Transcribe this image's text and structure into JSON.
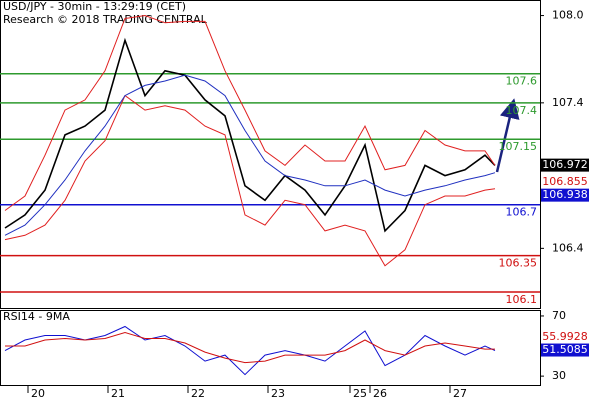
{
  "chart_data": [
    {
      "type": "line",
      "title": "USD/JPY - 30min - 13:29:19 (CET)",
      "subtitle": "Research © 2018 TRADING CENTRAL",
      "x": [
        5,
        25,
        45,
        65,
        85,
        105,
        125,
        145,
        165,
        185,
        205,
        225,
        245,
        265,
        285,
        305,
        325,
        345,
        365,
        385,
        405,
        425,
        445,
        465,
        485,
        495
      ],
      "xlim": [
        0,
        540
      ],
      "xticks": [
        {
          "value": 28,
          "label": "20"
        },
        {
          "value": 108,
          "label": "21"
        },
        {
          "value": 188,
          "label": "22"
        },
        {
          "value": 268,
          "label": "23"
        },
        {
          "value": 350,
          "label": "25"
        },
        {
          "value": 370,
          "label": "26"
        },
        {
          "value": 450,
          "label": "27"
        }
      ],
      "ylim": [
        105.99,
        108.1
      ],
      "yticks": [
        {
          "value": 108,
          "label": "108.0"
        },
        107.4,
        106.4
      ],
      "series": [
        {
          "color": "#000000",
          "values": [
            106.54,
            106.63,
            106.8,
            107.18,
            107.24,
            107.35,
            107.83,
            107.45,
            107.62,
            107.59,
            107.42,
            107.31,
            106.83,
            106.73,
            106.9,
            106.8,
            106.63,
            106.83,
            107.11,
            106.52,
            106.66,
            106.97,
            106.9,
            106.94,
            107.04,
            106.97
          ]
        },
        {
          "color": "#e02020",
          "values": [
            106.66,
            106.76,
            107.04,
            107.35,
            107.42,
            107.62,
            107.98,
            108.0,
            107.95,
            107.96,
            107.96,
            107.62,
            107.35,
            107.07,
            106.97,
            107.11,
            107.0,
            107.0,
            107.24,
            106.94,
            106.97,
            107.21,
            107.11,
            107.07,
            107.07,
            106.97
          ]
        },
        {
          "color": "#e02020",
          "values": [
            106.46,
            106.49,
            106.56,
            106.73,
            107.0,
            107.14,
            107.45,
            107.35,
            107.38,
            107.35,
            107.24,
            107.18,
            106.63,
            106.56,
            106.73,
            106.7,
            106.52,
            106.56,
            106.52,
            106.28,
            106.39,
            106.7,
            106.76,
            106.76,
            106.8,
            106.81
          ]
        },
        {
          "color": "#2030c0",
          "values": [
            106.49,
            106.56,
            106.7,
            106.87,
            107.07,
            107.24,
            107.45,
            107.52,
            107.55,
            107.59,
            107.55,
            107.45,
            107.21,
            107.0,
            106.9,
            106.87,
            106.83,
            106.83,
            106.87,
            106.8,
            106.76,
            106.8,
            106.83,
            106.87,
            106.9,
            106.92
          ]
        }
      ],
      "levels": [
        {
          "value": 107.6,
          "color": "#2e9a2e"
        },
        {
          "value": 107.4,
          "color": "#2e9a2e"
        },
        {
          "value": 107.15,
          "color": "#2e9a2e"
        },
        {
          "value": 106.7,
          "color": "#1010d0"
        },
        {
          "value": 106.35,
          "color": "#d01010"
        },
        {
          "value": 106.1,
          "color": "#d01010"
        }
      ],
      "last_values": [
        {
          "value": 106.972,
          "color": "#000000",
          "boxed": true
        },
        {
          "value": 106.855,
          "color": "#d01010",
          "boxed": false
        },
        {
          "value": 106.938,
          "color": "#1010d0",
          "boxed": true
        }
      ]
    },
    {
      "type": "line",
      "title": "RSI14 - 9MA",
      "x": [
        5,
        25,
        45,
        65,
        85,
        105,
        125,
        145,
        165,
        185,
        205,
        225,
        245,
        265,
        285,
        305,
        325,
        345,
        365,
        385,
        405,
        425,
        445,
        465,
        485,
        495
      ],
      "xlim": [
        0,
        540
      ],
      "ylim": [
        24.1,
        73.3
      ],
      "yticks": [
        70,
        30
      ],
      "series": [
        {
          "color": "#1010d0",
          "values": [
            47,
            54,
            57,
            57,
            54,
            57,
            63,
            54,
            57,
            50,
            40,
            44,
            31,
            44,
            47,
            44,
            40,
            50,
            60,
            37,
            44,
            57,
            50,
            44,
            50,
            47
          ]
        },
        {
          "color": "#d01010",
          "values": [
            50,
            50,
            54,
            55,
            54,
            55,
            59,
            55,
            55,
            52,
            46,
            42,
            39,
            40,
            44,
            44,
            44,
            47,
            54,
            47,
            44,
            50,
            52,
            50,
            48,
            48
          ]
        }
      ],
      "last_values": [
        {
          "value": 55.9928,
          "color": "#d01010",
          "boxed": false
        },
        {
          "value": 51.5085,
          "color": "#1010d0",
          "boxed": true
        }
      ]
    }
  ]
}
